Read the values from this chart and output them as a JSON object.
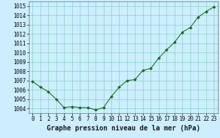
{
  "x": [
    0,
    1,
    2,
    3,
    4,
    5,
    6,
    7,
    8,
    9,
    10,
    11,
    12,
    13,
    14,
    15,
    16,
    17,
    18,
    19,
    20,
    21,
    22,
    23
  ],
  "y": [
    1006.9,
    1006.3,
    1005.8,
    1005.0,
    1004.1,
    1004.2,
    1004.1,
    1004.1,
    1003.85,
    1004.1,
    1005.3,
    1006.3,
    1007.0,
    1007.1,
    1008.1,
    1008.3,
    1009.4,
    1010.3,
    1011.1,
    1012.2,
    1012.7,
    1013.8,
    1014.4,
    1014.9
  ],
  "line_color": "#1a6b1a",
  "marker": "D",
  "marker_size": 2,
  "bg_color": "#cceeff",
  "grid_color": "#88ccbb",
  "title": "Graphe pression niveau de la mer (hPa)",
  "xlim": [
    -0.5,
    23.5
  ],
  "ylim": [
    1003.5,
    1015.5
  ],
  "yticks": [
    1004,
    1005,
    1006,
    1007,
    1008,
    1009,
    1010,
    1011,
    1012,
    1013,
    1014,
    1015
  ],
  "xticks": [
    0,
    1,
    2,
    3,
    4,
    5,
    6,
    7,
    8,
    9,
    10,
    11,
    12,
    13,
    14,
    15,
    16,
    17,
    18,
    19,
    20,
    21,
    22,
    23
  ],
  "title_fontsize": 7,
  "tick_fontsize": 5.5
}
